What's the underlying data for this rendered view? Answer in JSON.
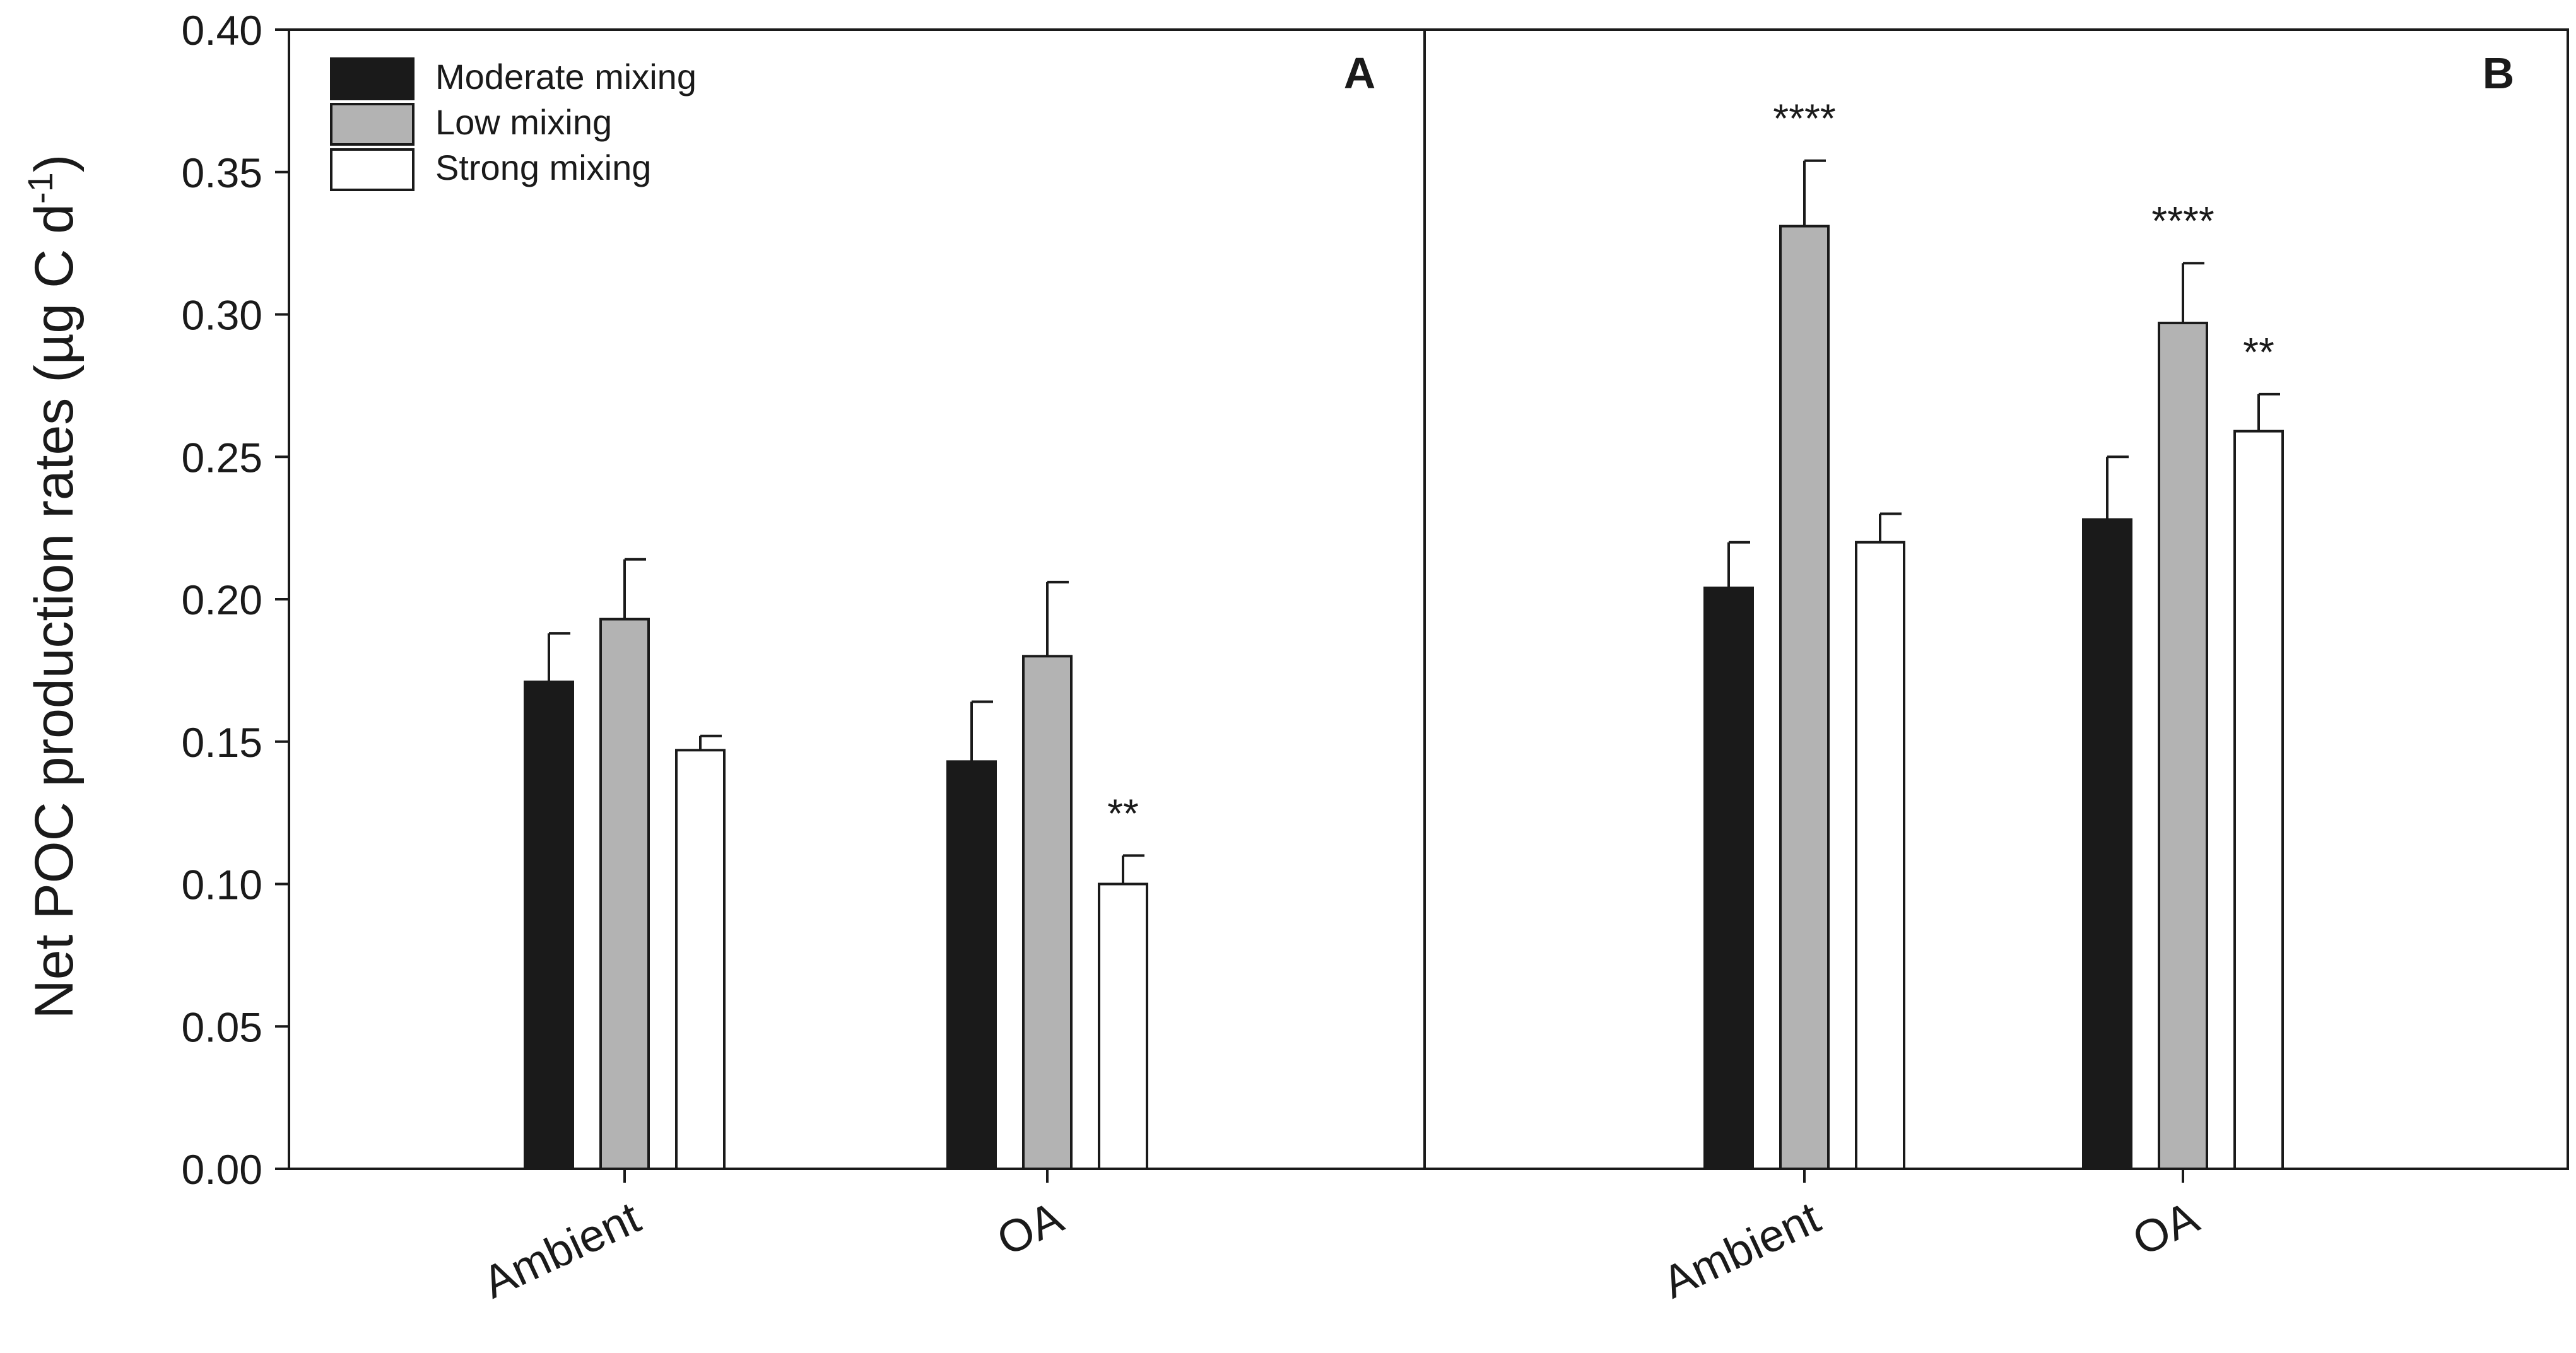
{
  "chart_data": {
    "type": "bar",
    "ylabel_main": "Net POC production rates (µg C d",
    "ylabel_sup": "-1",
    "ylabel_close": ")",
    "ylim": [
      0,
      0.4
    ],
    "yticks": [
      "0.00",
      "0.05",
      "0.10",
      "0.15",
      "0.20",
      "0.25",
      "0.30",
      "0.35",
      "0.40"
    ],
    "ytick_values": [
      0,
      0.05,
      0.1,
      0.15,
      0.2,
      0.25,
      0.3,
      0.35,
      0.4
    ],
    "legend": [
      {
        "name": "Moderate mixing",
        "color": "#1a1a1a"
      },
      {
        "name": "Low mixing",
        "color": "#b3b3b3"
      },
      {
        "name": "Strong mixing",
        "color": "#ffffff"
      }
    ],
    "panels": [
      {
        "label": "A",
        "categories": [
          "Ambient",
          "OA"
        ],
        "series": [
          {
            "name": "Moderate mixing",
            "values": [
              0.171,
              0.143
            ],
            "errors": [
              0.017,
              0.021
            ],
            "annotations": [
              "",
              ""
            ]
          },
          {
            "name": "Low mixing",
            "values": [
              0.193,
              0.18
            ],
            "errors": [
              0.021,
              0.026
            ],
            "annotations": [
              "",
              ""
            ]
          },
          {
            "name": "Strong mixing",
            "values": [
              0.147,
              0.1
            ],
            "errors": [
              0.005,
              0.01
            ],
            "annotations": [
              "",
              "**"
            ]
          }
        ]
      },
      {
        "label": "B",
        "categories": [
          "Ambient",
          "OA"
        ],
        "series": [
          {
            "name": "Moderate mixing",
            "values": [
              0.204,
              0.228
            ],
            "errors": [
              0.016,
              0.022
            ],
            "annotations": [
              "",
              ""
            ]
          },
          {
            "name": "Low mixing",
            "values": [
              0.331,
              0.297
            ],
            "errors": [
              0.023,
              0.021
            ],
            "annotations": [
              "****",
              "****"
            ]
          },
          {
            "name": "Strong mixing",
            "values": [
              0.22,
              0.259
            ],
            "errors": [
              0.01,
              0.013
            ],
            "annotations": [
              "",
              "**"
            ]
          }
        ]
      }
    ]
  }
}
